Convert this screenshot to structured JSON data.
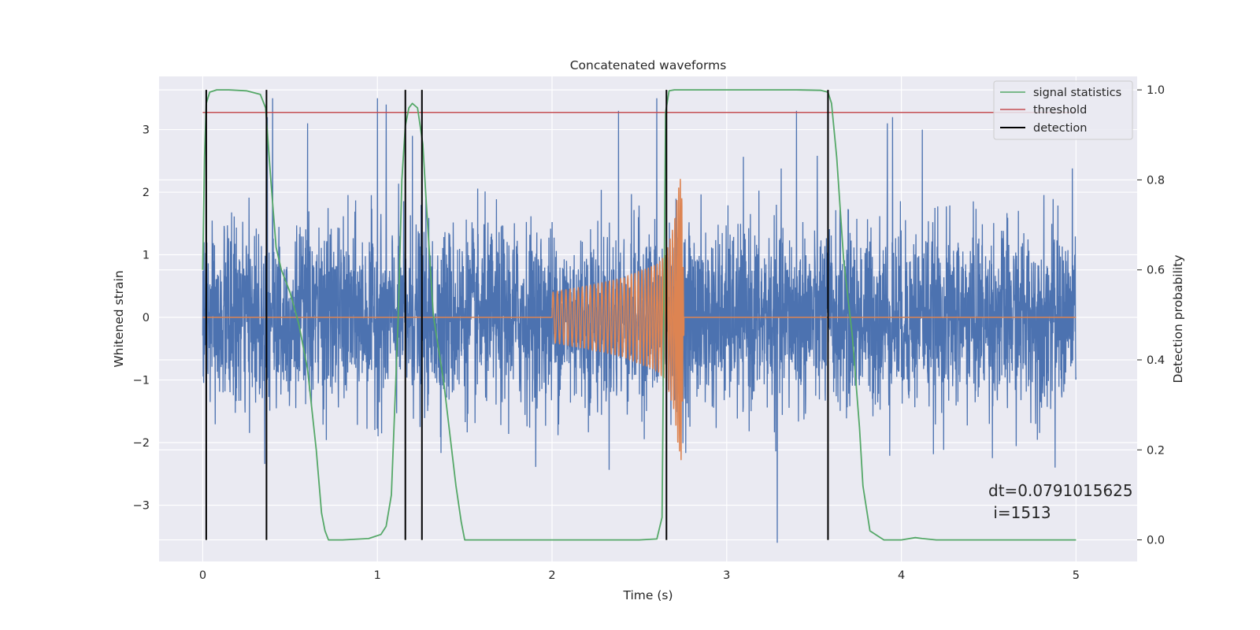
{
  "chart_data": {
    "type": "line",
    "title": "Concatenated waveforms",
    "xlabel": "Time (s)",
    "ylabel": "Whitened strain",
    "y2label": "Detection probability",
    "xlim": [
      -0.25,
      5.35
    ],
    "ylim": [
      -3.9,
      3.85
    ],
    "y2lim": [
      -0.048,
      1.03
    ],
    "x_ticks": [
      "0",
      "1",
      "2",
      "3",
      "4",
      "5"
    ],
    "y_ticks": [
      "−3",
      "−2",
      "−1",
      "0",
      "1",
      "2",
      "3"
    ],
    "y2_ticks": [
      "0.0",
      "0.2",
      "0.4",
      "0.6",
      "0.8",
      "1.0"
    ],
    "grid": true,
    "legend_position": "top-right",
    "colors": {
      "plot_bg": "#eaeaf2",
      "grid": "#ffffff",
      "strain": "#4c72b0",
      "waveform": "#dd8452",
      "statistics": "#55a868",
      "threshold": "#c44e52",
      "detection": "#000000"
    },
    "series": [
      {
        "name": "signal statistics",
        "axis": "right",
        "x": [
          0.0,
          0.01,
          0.02,
          0.04,
          0.08,
          0.15,
          0.25,
          0.33,
          0.36,
          0.39,
          0.42,
          0.45,
          0.5,
          0.55,
          0.6,
          0.65,
          0.68,
          0.7,
          0.72,
          0.8,
          0.95,
          1.02,
          1.05,
          1.08,
          1.12,
          1.14,
          1.16,
          1.18,
          1.2,
          1.23,
          1.26,
          1.28,
          1.32,
          1.38,
          1.45,
          1.48,
          1.5,
          1.6,
          2.0,
          2.5,
          2.6,
          2.63,
          2.64,
          2.65,
          2.67,
          2.7,
          2.8,
          3.0,
          3.4,
          3.54,
          3.58,
          3.6,
          3.63,
          3.67,
          3.72,
          3.76,
          3.78,
          3.82,
          3.9,
          4.0,
          4.08,
          4.12,
          4.2,
          4.5,
          5.0
        ],
        "y": [
          0.6,
          0.85,
          0.97,
          0.995,
          1.0,
          1.0,
          0.998,
          0.99,
          0.96,
          0.8,
          0.65,
          0.6,
          0.55,
          0.48,
          0.38,
          0.2,
          0.06,
          0.02,
          0.0,
          0.0,
          0.003,
          0.012,
          0.03,
          0.1,
          0.5,
          0.8,
          0.92,
          0.96,
          0.97,
          0.96,
          0.88,
          0.75,
          0.5,
          0.35,
          0.12,
          0.04,
          0.0,
          0.0,
          0.0,
          0.0,
          0.002,
          0.05,
          0.5,
          0.95,
          0.998,
          1.0,
          1.0,
          1.0,
          1.0,
          0.999,
          0.995,
          0.97,
          0.85,
          0.62,
          0.45,
          0.25,
          0.12,
          0.02,
          0.0,
          0.0,
          0.005,
          0.003,
          0.0,
          0.0,
          0.0
        ]
      },
      {
        "name": "threshold",
        "axis": "right",
        "x": [
          0.0,
          5.0
        ],
        "y": [
          0.95,
          0.95
        ]
      },
      {
        "name": "detection",
        "axis": "right",
        "vlines_x": [
          0.02,
          0.365,
          1.16,
          1.255,
          2.655,
          3.58
        ],
        "ymin": 0.0,
        "ymax": 1.0
      },
      {
        "role": "whitened-strain",
        "axis": "left",
        "t_range": [
          0.0,
          5.0
        ],
        "samples": 1513,
        "rms": 0.72,
        "peaks": {
          "x": [
            0.02,
            0.37,
            0.4,
            0.6,
            1.0,
            1.05,
            1.2,
            2.38,
            2.6,
            3.29,
            3.4,
            3.92,
            3.95,
            4.12,
            4.88
          ],
          "y": [
            2.3,
            3.2,
            3.5,
            3.1,
            3.5,
            3.4,
            2.9,
            3.3,
            3.5,
            -3.6,
            3.3,
            3.1,
            3.2,
            3.0,
            -2.4
          ]
        }
      },
      {
        "role": "injected-waveform",
        "axis": "left",
        "t_range": [
          2.0,
          2.755
        ],
        "envelope": {
          "x": [
            2.0,
            2.2,
            2.4,
            2.6,
            2.65,
            2.7,
            2.72,
            2.74,
            2.755
          ],
          "y": [
            0.4,
            0.5,
            0.62,
            0.85,
            1.0,
            1.5,
            2.0,
            2.3,
            0.2
          ]
        },
        "frequency_hz": {
          "x": [
            2.0,
            2.5,
            2.7,
            2.75
          ],
          "y": [
            40,
            50,
            75,
            130
          ]
        }
      }
    ],
    "annotation": {
      "line1": "dt=0.0791015625",
      "line2": " i=1513"
    }
  }
}
